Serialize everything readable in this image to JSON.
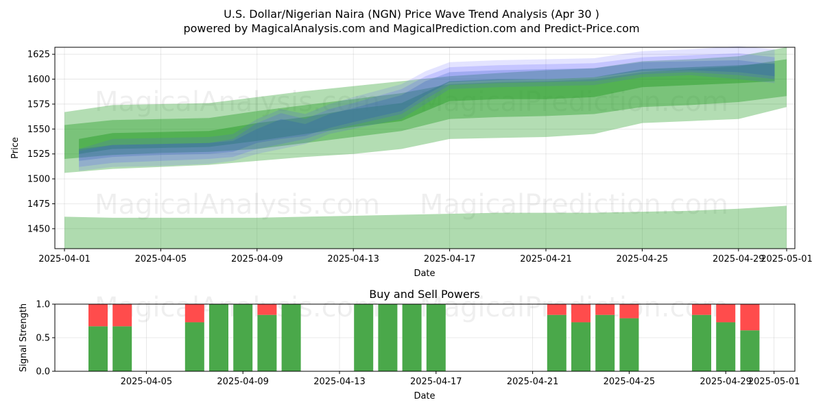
{
  "chart_data": [
    {
      "type": "area",
      "title": "U.S. Dollar/Nigerian Naira (NGN) Price Wave Trend Analysis (Apr 30 )",
      "subtitle": "powered by MagicalAnalysis.com and MagicalPrediction.com and Predict-Price.com",
      "xlabel": "Date",
      "ylabel": "Price",
      "xlim": [
        0,
        30.5
      ],
      "ylim": [
        1430,
        1632
      ],
      "x_ticks": [
        "2025-04-01",
        "2025-04-05",
        "2025-04-09",
        "2025-04-13",
        "2025-04-17",
        "2025-04-21",
        "2025-04-25",
        "2025-04-29",
        "2025-05-01"
      ],
      "x_tick_days": [
        0,
        4,
        8,
        12,
        16,
        20,
        24,
        28,
        30
      ],
      "y_ticks": [
        1450,
        1475,
        1500,
        1525,
        1550,
        1575,
        1600,
        1625
      ],
      "grid": true,
      "watermarks": [
        "MagicalAnalysis.com",
        "MagicalPrediction.com"
      ],
      "colors": {
        "green": "#2ca02c",
        "blue": "#4f4fff",
        "darkblue": "#1f4fbf"
      },
      "green_bands": [
        {
          "x": [
            0,
            2,
            4,
            6,
            8,
            10,
            12,
            14,
            16,
            18,
            20,
            22,
            24,
            26,
            28,
            30
          ],
          "lower": [
            1460,
            1459,
            1459,
            1459,
            1459,
            1460,
            1461,
            1462,
            1463,
            1464,
            1464,
            1464,
            1465,
            1466,
            1467,
            1470
          ],
          "upper": [
            1462,
            1461,
            1461,
            1461,
            1461,
            1462,
            1463,
            1464,
            1465,
            1466,
            1466,
            1466,
            1467,
            1468,
            1470,
            1473
          ],
          "bottom_to_axis": true,
          "opacity": 0.38
        },
        {
          "x": [
            0,
            2,
            4,
            6,
            8,
            10,
            12,
            14,
            16,
            18,
            20,
            22,
            24,
            26,
            28,
            30
          ],
          "lower": [
            1506,
            1510,
            1512,
            1514,
            1518,
            1522,
            1525,
            1530,
            1540,
            1541,
            1542,
            1545,
            1556,
            1558,
            1560,
            1572
          ],
          "upper": [
            1567,
            1574,
            1575,
            1576,
            1582,
            1588,
            1593,
            1598,
            1603,
            1606,
            1609,
            1611,
            1618,
            1620,
            1623,
            1632
          ],
          "opacity": 0.36
        },
        {
          "x": [
            0,
            2,
            4,
            6,
            8,
            10,
            12,
            14,
            16,
            18,
            20,
            22,
            24,
            26,
            28,
            30
          ],
          "lower": [
            1520,
            1524,
            1526,
            1527,
            1530,
            1536,
            1542,
            1548,
            1560,
            1562,
            1563,
            1565,
            1572,
            1574,
            1577,
            1583
          ],
          "upper": [
            1554,
            1559,
            1560,
            1561,
            1568,
            1574,
            1580,
            1586,
            1595,
            1597,
            1598,
            1600,
            1607,
            1610,
            1613,
            1620
          ],
          "opacity": 0.42
        },
        {
          "x": [
            0.6,
            2,
            4,
            6,
            8,
            10,
            12,
            14,
            16,
            18,
            20,
            22,
            24,
            26,
            28,
            29.5
          ],
          "lower": [
            1525,
            1530,
            1531,
            1532,
            1538,
            1545,
            1552,
            1558,
            1578,
            1580,
            1580,
            1582,
            1592,
            1594,
            1596,
            1598
          ],
          "upper": [
            1540,
            1546,
            1547,
            1548,
            1556,
            1562,
            1570,
            1576,
            1598,
            1600,
            1600,
            1602,
            1610,
            1612,
            1614,
            1616
          ],
          "opacity": 0.5
        }
      ],
      "blue_bands": [
        {
          "x": [
            0.6,
            2,
            4,
            6,
            7,
            8,
            9,
            10,
            11,
            12,
            14,
            15,
            16,
            18,
            20,
            22,
            24,
            26,
            28,
            29.5
          ],
          "lower": [
            1508,
            1512,
            1513,
            1515,
            1518,
            1525,
            1530,
            1535,
            1545,
            1550,
            1560,
            1575,
            1590,
            1592,
            1593,
            1594,
            1602,
            1604,
            1600,
            1596
          ],
          "upper": [
            1530,
            1540,
            1541,
            1542,
            1545,
            1560,
            1570,
            1565,
            1575,
            1582,
            1595,
            1608,
            1617,
            1619,
            1620,
            1621,
            1628,
            1630,
            1633,
            1630
          ],
          "opacity": 0.16
        },
        {
          "x": [
            0.6,
            2,
            4,
            6,
            7,
            8,
            9,
            10,
            11,
            12,
            14,
            15,
            16,
            18,
            20,
            22,
            24,
            26,
            28,
            29.5
          ],
          "lower": [
            1512,
            1516,
            1518,
            1520,
            1522,
            1530,
            1535,
            1540,
            1548,
            1554,
            1565,
            1580,
            1594,
            1596,
            1597,
            1598,
            1605,
            1607,
            1604,
            1600
          ],
          "upper": [
            1528,
            1534,
            1535,
            1536,
            1540,
            1556,
            1566,
            1560,
            1570,
            1576,
            1590,
            1603,
            1612,
            1614,
            1615,
            1616,
            1622,
            1624,
            1626,
            1622
          ],
          "opacity": 0.2
        },
        {
          "x": [
            0.6,
            2,
            4,
            6,
            7,
            8,
            9,
            10,
            11,
            12,
            14,
            15,
            16,
            18,
            20,
            22,
            24,
            26,
            28,
            29.5
          ],
          "lower": [
            1518,
            1522,
            1524,
            1525,
            1527,
            1536,
            1540,
            1543,
            1551,
            1557,
            1568,
            1584,
            1597,
            1599,
            1600,
            1602,
            1608,
            1609,
            1607,
            1603
          ],
          "upper": [
            1530,
            1534,
            1535,
            1536,
            1538,
            1550,
            1560,
            1555,
            1565,
            1571,
            1584,
            1598,
            1607,
            1609,
            1610,
            1611,
            1617,
            1618,
            1619,
            1615
          ],
          "opacity": 0.22
        }
      ]
    },
    {
      "type": "bar",
      "title": "Buy and Sell Powers",
      "xlabel": "Date",
      "ylabel": "Signal Strength",
      "xlim": [
        -0.5,
        30.5
      ],
      "ylim": [
        0,
        1.0
      ],
      "y_ticks": [
        "0.0",
        "0.5",
        "1.0"
      ],
      "y_tick_values": [
        0,
        0.5,
        1.0
      ],
      "x_ticks": [
        "2025-04-05",
        "2025-04-09",
        "2025-04-13",
        "2025-04-17",
        "2025-04-21",
        "2025-04-25",
        "2025-04-29",
        "2025-05-01"
      ],
      "x_tick_days": [
        4,
        8,
        12,
        16,
        20,
        24,
        28,
        30
      ],
      "colors": {
        "buy": "#4aa84a",
        "sell": "#ff4c4c"
      },
      "days": [
        2,
        3,
        6,
        7,
        8,
        9,
        10,
        13,
        14,
        15,
        16,
        21,
        22,
        23,
        24,
        27,
        28,
        29
      ],
      "buy": [
        0.67,
        0.67,
        0.73,
        1.0,
        1.0,
        0.84,
        1.0,
        1.0,
        1.0,
        1.0,
        1.0,
        0.84,
        0.73,
        0.84,
        0.79,
        0.84,
        0.73,
        0.61
      ],
      "sell": [
        0.33,
        0.33,
        0.27,
        0.0,
        0.0,
        0.16,
        0.0,
        0.0,
        0.0,
        0.0,
        0.0,
        0.16,
        0.27,
        0.16,
        0.21,
        0.16,
        0.27,
        0.39
      ]
    }
  ]
}
